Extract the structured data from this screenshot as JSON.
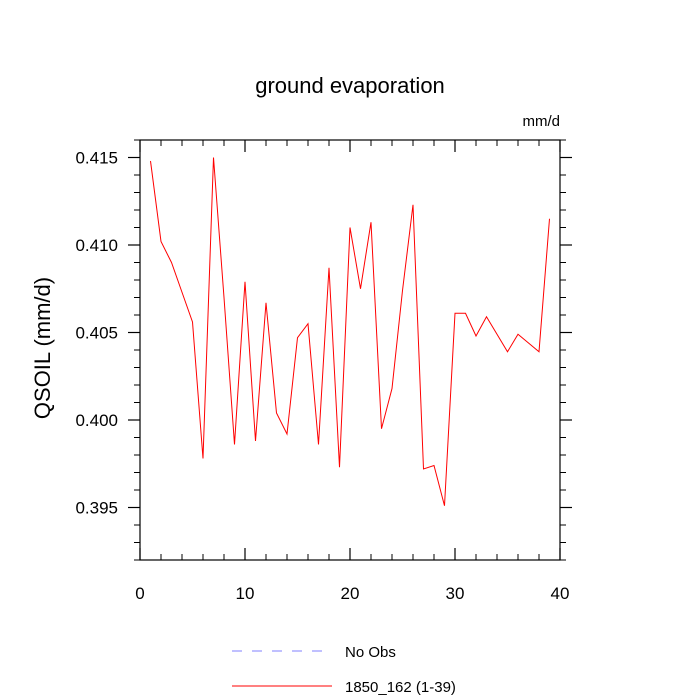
{
  "chart_data": {
    "type": "line",
    "title": "ground evaporation",
    "units": "mm/d",
    "xlabel": "",
    "ylabel": "QSOIL  (mm/d)",
    "xlim": [
      0,
      40
    ],
    "ylim": [
      0.392,
      0.416
    ],
    "xticks": [
      0,
      10,
      20,
      30,
      40
    ],
    "yticks": [
      0.395,
      0.4,
      0.405,
      0.41,
      0.415
    ],
    "ytick_labels": [
      "0.395",
      "0.400",
      "0.405",
      "0.410",
      "0.415"
    ],
    "grid": false,
    "legend_position": "bottom-center",
    "series": [
      {
        "name": "1850_162 (1-39)",
        "color": "#ff0000",
        "style": "solid",
        "x": [
          1,
          2,
          3,
          4,
          5,
          6,
          7,
          8,
          9,
          10,
          11,
          12,
          13,
          14,
          15,
          16,
          17,
          18,
          19,
          20,
          21,
          22,
          23,
          24,
          25,
          26,
          27,
          28,
          29,
          30,
          31,
          32,
          33,
          34,
          35,
          36,
          37,
          38,
          39
        ],
        "values": [
          0.4148,
          0.4102,
          0.409,
          0.4073,
          0.4056,
          0.3978,
          0.415,
          0.407,
          0.3986,
          0.4079,
          0.3988,
          0.4067,
          0.4004,
          0.3992,
          0.4047,
          0.4055,
          0.3986,
          0.4087,
          0.3973,
          0.411,
          0.4075,
          0.4113,
          0.3995,
          0.4018,
          0.4074,
          0.4123,
          0.3972,
          0.3974,
          0.3951,
          0.4061,
          0.4061,
          0.4048,
          0.4059,
          0.4049,
          0.4039,
          0.4049,
          0.4044,
          0.4039,
          0.4115
        ]
      }
    ],
    "reference_series": [
      {
        "name": "No Obs",
        "color": "#8080ff",
        "style": "dashed",
        "values": []
      }
    ]
  }
}
